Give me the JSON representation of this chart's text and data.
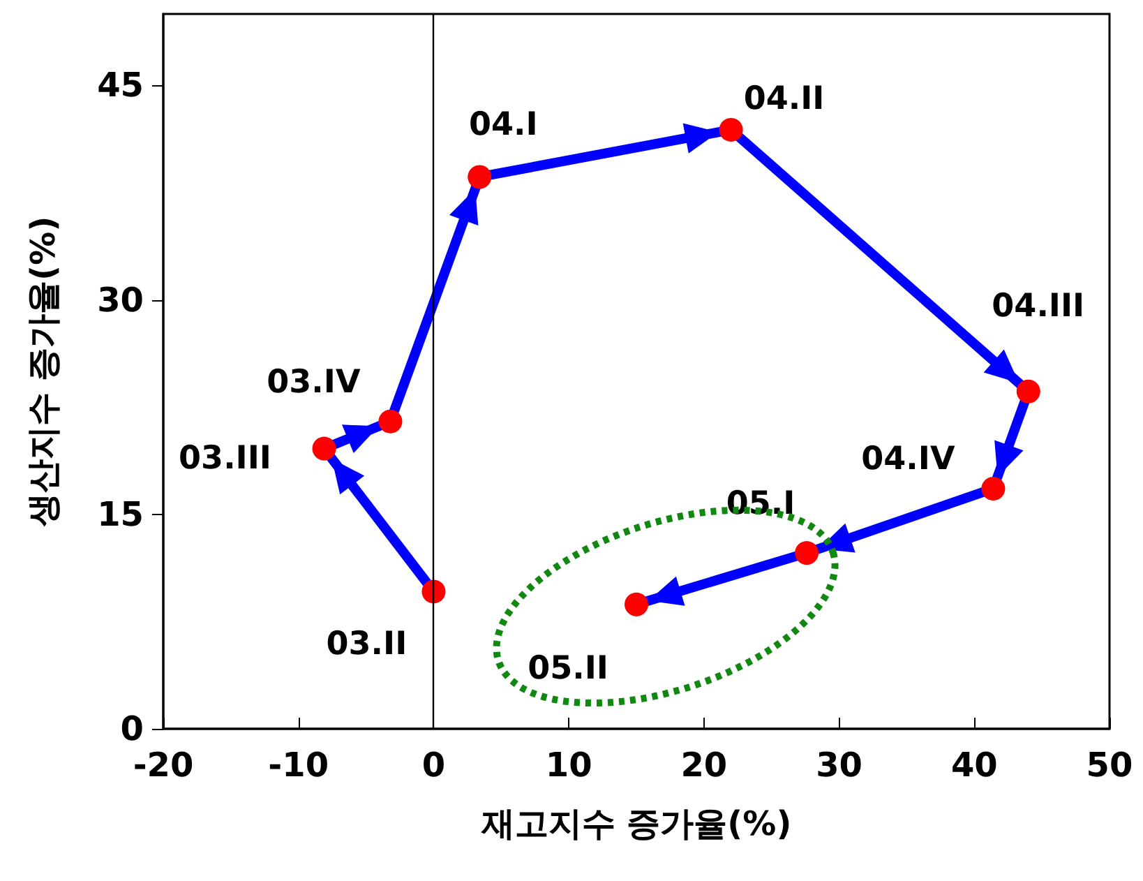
{
  "chart_data": {
    "type": "line",
    "xlabel": "재고지수 증가율(%)",
    "ylabel": "생산지수 증가율(%)",
    "x": [
      0,
      -8.1,
      -3.2,
      3.4,
      22.0,
      44.0,
      41.4,
      27.6,
      15.0
    ],
    "series": [
      {
        "color": "#0000ff",
        "colors": [
          "#ff0000",
          "#ff0000",
          "#ff0000",
          "#ff0000",
          "#ff0000",
          "#ff0000",
          "#ff0000",
          "#ff0000",
          "#ff0000"
        ],
        "values": [
          9.6,
          19.6,
          21.5,
          38.6,
          41.9,
          23.6,
          16.8,
          12.3,
          8.7
        ]
      }
    ],
    "xlim": [
      -20,
      50
    ],
    "xticks": [
      -20,
      -10,
      0,
      10,
      20,
      30,
      40,
      50
    ],
    "ylim": [
      0,
      50
    ],
    "yticks": [
      0,
      15,
      30,
      45
    ],
    "ref_lines": [
      {
        "axis": "x",
        "value": 0,
        "color": "#000000"
      }
    ],
    "annotations": [
      {
        "text": "03.II",
        "x": 0,
        "y": 9.6
      },
      {
        "text": "03.III",
        "x": -8.1,
        "y": 19.6
      },
      {
        "text": "03.IV",
        "x": -3.2,
        "y": 21.5
      },
      {
        "text": "04.I",
        "x": 3.4,
        "y": 38.6
      },
      {
        "text": "04.II",
        "x": 22.0,
        "y": 41.9
      },
      {
        "text": "04.III",
        "x": 44.0,
        "y": 23.6
      },
      {
        "text": "04.IV",
        "x": 41.4,
        "y": 16.8
      },
      {
        "text": "05.I",
        "x": 27.6,
        "y": 12.3
      },
      {
        "text": "05.II",
        "x": 15.0,
        "y": 8.7
      }
    ],
    "grid": false,
    "marker": "circle"
  }
}
